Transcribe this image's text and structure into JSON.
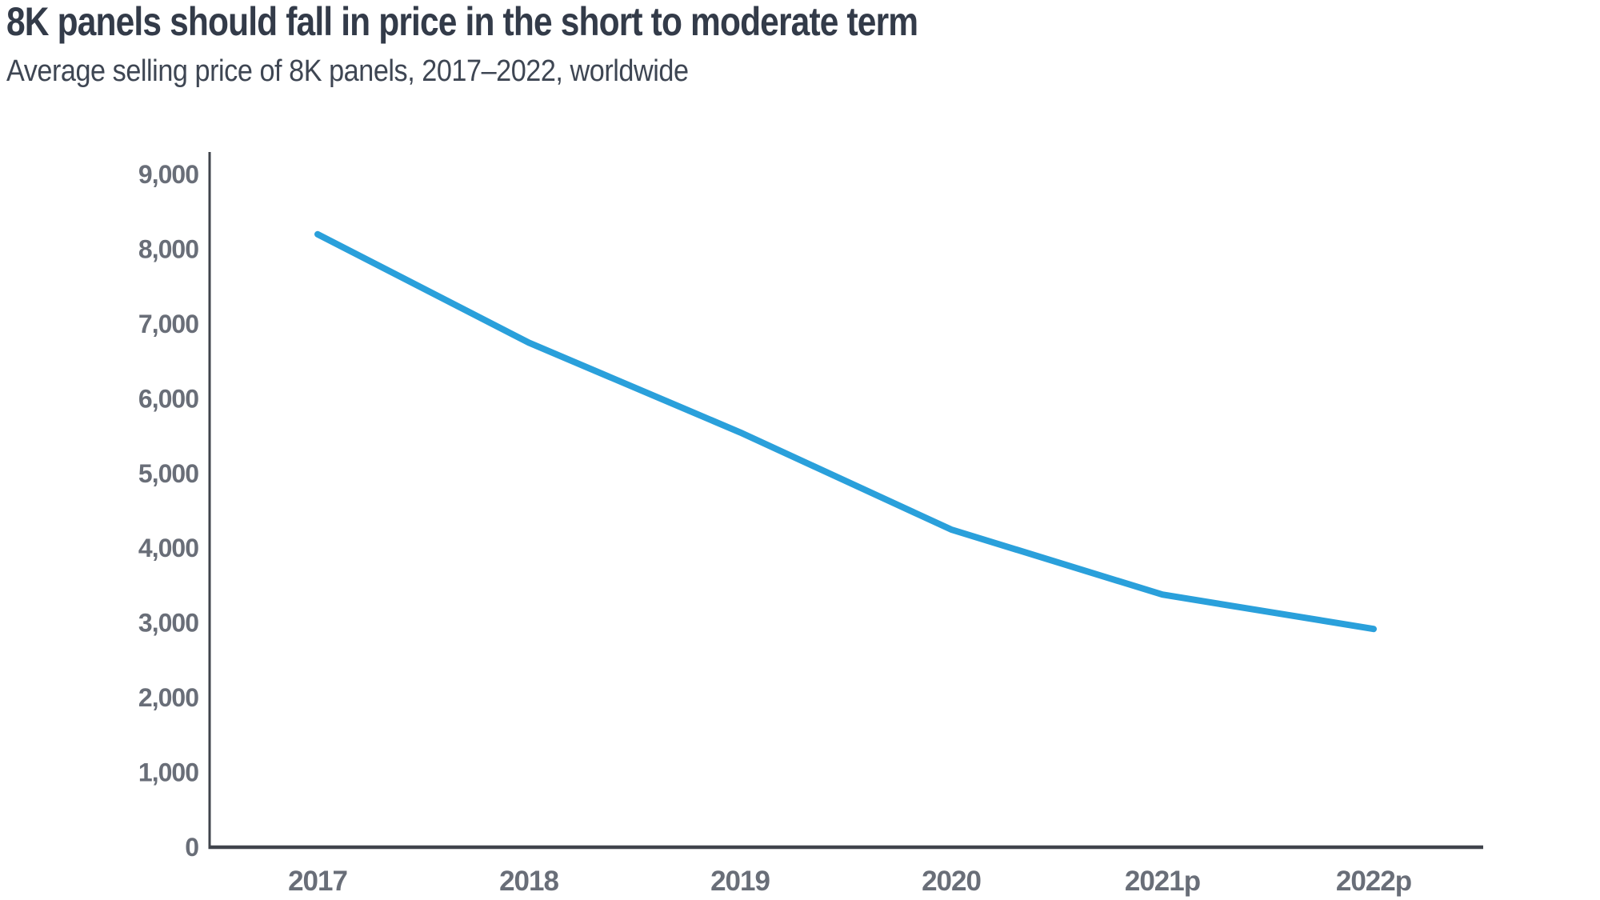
{
  "header": {
    "title": "8K panels should fall in price in the short to moderate term",
    "subtitle": "Average selling price of 8K panels, 2017–2022, worldwide"
  },
  "chart_data": {
    "type": "line",
    "title": "8K panels should fall in price in the short to moderate term",
    "subtitle": "Average selling price of 8K panels, 2017–2022, worldwide",
    "categories": [
      "2017",
      "2018",
      "2019",
      "2020",
      "2021p",
      "2022p"
    ],
    "values": [
      8200,
      6750,
      5550,
      4250,
      3380,
      2920
    ],
    "xlabel": "",
    "ylabel": "",
    "ylim": [
      0,
      9300
    ],
    "ytick_values": [
      0,
      1000,
      2000,
      3000,
      4000,
      5000,
      6000,
      7000,
      8000,
      9000
    ],
    "ytick_labels": [
      "0",
      "1,000",
      "2,000",
      "3,000",
      "4,000",
      "5,000",
      "6,000",
      "7,000",
      "8,000",
      "9,000"
    ],
    "grid": false,
    "legend": false,
    "colors": {
      "line": "#2aa0db",
      "axis": "#40444c",
      "tick_label": "#696e78",
      "title": "#333b49",
      "subtitle": "#3e4653",
      "background": "#ffffff"
    }
  }
}
